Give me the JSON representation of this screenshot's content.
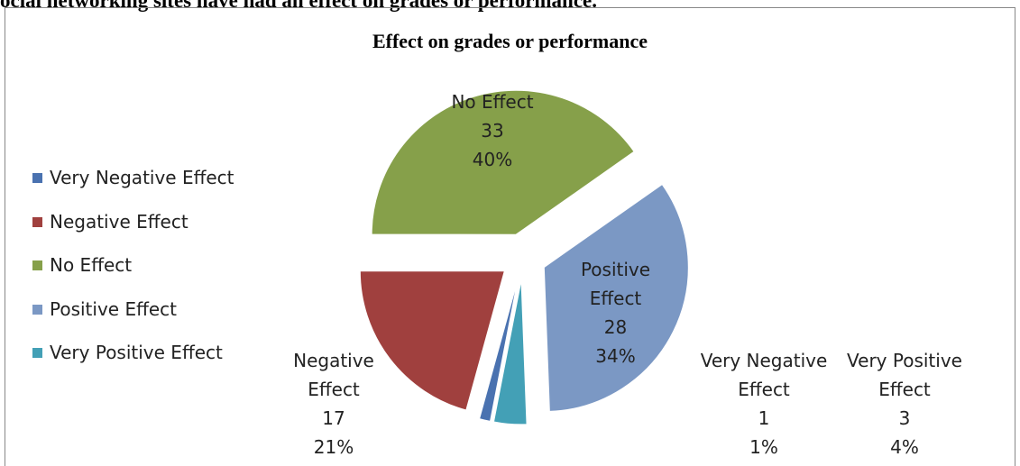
{
  "heading": "ocial networking sites have had an effect on grades or performance.",
  "chart_data": {
    "type": "pie",
    "title": "Effect on grades or performance",
    "categories": [
      "Very Negative Effect",
      "Negative Effect",
      "No Effect",
      "Positive Effect",
      "Very Positive Effect"
    ],
    "values": [
      1,
      17,
      33,
      28,
      3
    ],
    "percent_labels": [
      "1%",
      "21%",
      "40%",
      "34%",
      "4%"
    ],
    "colors": [
      "#4a72b0",
      "#a0403e",
      "#86a04a",
      "#7b98c4",
      "#43a0b6"
    ],
    "legend": "left"
  }
}
